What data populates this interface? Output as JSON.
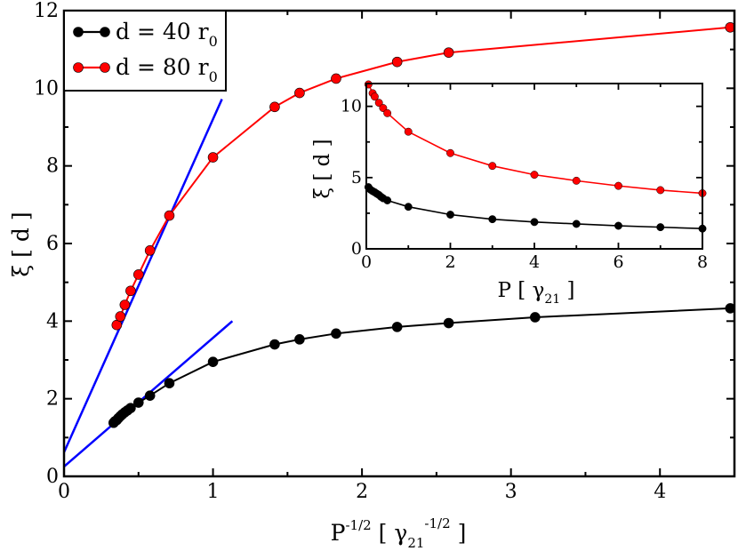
{
  "chart_data": [
    {
      "type": "line",
      "role": "main",
      "xlabel": "P",
      "xlabel_sup": "-1/2",
      "xlabel_unit": "γ",
      "xlabel_unit_sub": "21",
      "xlabel_unit_sup": "-1/2",
      "ylabel": "ξ",
      "ylabel_unit": "d",
      "xlim": [
        0,
        4.5
      ],
      "ylim": [
        0,
        12
      ],
      "xticks": [
        0,
        1,
        2,
        3,
        4
      ],
      "yticks": [
        0,
        2,
        4,
        6,
        8,
        10,
        12
      ],
      "legend_position": "top-left",
      "series": [
        {
          "name": "d = 40 r",
          "name_sub": "0",
          "color": "#000000",
          "x": [
            0.333,
            0.342,
            0.354,
            0.365,
            0.378,
            0.392,
            0.408,
            0.426,
            0.447,
            0.5,
            0.577,
            0.707,
            1.0,
            1.414,
            1.581,
            1.826,
            2.236,
            2.582,
            3.162,
            4.472
          ],
          "y": [
            1.38,
            1.42,
            1.45,
            1.5,
            1.55,
            1.6,
            1.65,
            1.7,
            1.76,
            1.9,
            2.08,
            2.4,
            2.95,
            3.4,
            3.53,
            3.68,
            3.85,
            3.95,
            4.1,
            4.33
          ]
        },
        {
          "name": "d = 80 r",
          "name_sub": "0",
          "color": "#ff0000",
          "x": [
            0.354,
            0.378,
            0.408,
            0.447,
            0.5,
            0.577,
            0.707,
            1.0,
            1.414,
            1.581,
            1.826,
            2.236,
            2.582,
            4.472
          ],
          "y": [
            3.9,
            4.12,
            4.42,
            4.78,
            5.2,
            5.82,
            6.72,
            8.22,
            9.52,
            9.88,
            10.25,
            10.68,
            10.92,
            11.57
          ]
        }
      ],
      "fit_lines": [
        {
          "name": "linear fit d = 40 r0",
          "color": "#0000ff",
          "x": [
            0,
            1.13
          ],
          "y": [
            0.25,
            4.0
          ]
        },
        {
          "name": "linear fit d = 80 r0",
          "color": "#0000ff",
          "x": [
            0,
            1.06
          ],
          "y": [
            0.62,
            9.72
          ]
        }
      ]
    },
    {
      "type": "line",
      "role": "inset",
      "xlabel": "P",
      "xlabel_unit": "γ",
      "xlabel_unit_sub": "21",
      "ylabel": "ξ",
      "ylabel_unit": "d",
      "xlim": [
        0,
        8
      ],
      "ylim": [
        0,
        11.6
      ],
      "xticks": [
        0,
        2,
        4,
        6,
        8
      ],
      "yticks": [
        0,
        5,
        10
      ],
      "series": [
        {
          "name": "d = 40 r",
          "color": "#000000",
          "x": [
            0.05,
            0.1,
            0.15,
            0.2,
            0.25,
            0.3,
            0.35,
            0.4,
            0.5,
            1,
            2,
            3,
            4,
            5,
            6,
            7,
            8
          ],
          "y": [
            4.33,
            4.15,
            4.05,
            3.97,
            3.87,
            3.78,
            3.65,
            3.55,
            3.4,
            2.95,
            2.4,
            2.08,
            1.88,
            1.75,
            1.62,
            1.52,
            1.42
          ]
        },
        {
          "name": "d = 80 r",
          "color": "#ff0000",
          "x": [
            0.05,
            0.15,
            0.2,
            0.3,
            0.4,
            0.5,
            1,
            2,
            3,
            4,
            5,
            6,
            7,
            8
          ],
          "y": [
            11.57,
            10.92,
            10.68,
            10.25,
            9.88,
            9.52,
            8.22,
            6.72,
            5.82,
            5.2,
            4.78,
            4.42,
            4.12,
            3.9
          ]
        }
      ]
    }
  ]
}
